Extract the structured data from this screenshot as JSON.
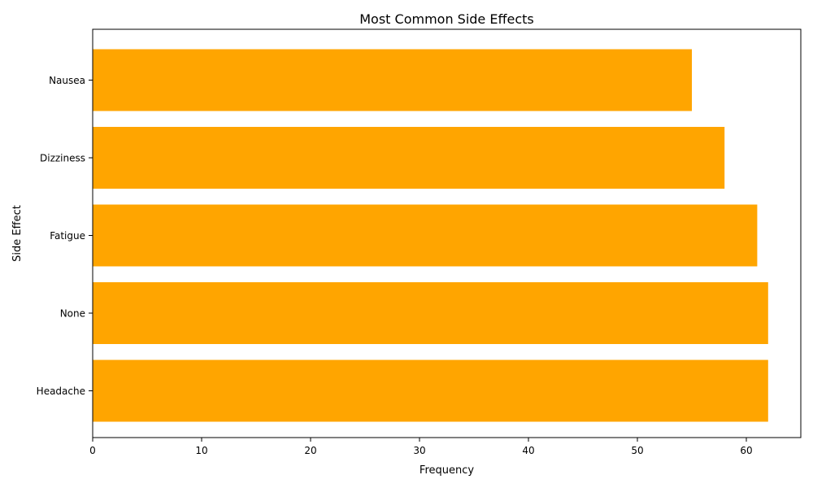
{
  "chart_data": {
    "type": "bar",
    "orientation": "horizontal",
    "title": "Most Common Side Effects",
    "xlabel": "Frequency",
    "ylabel": "Side Effect",
    "categories": [
      "Headache",
      "None",
      "Fatigue",
      "Dizziness",
      "Nausea"
    ],
    "values": [
      62,
      62,
      61,
      58,
      55
    ],
    "xlim": [
      0,
      65
    ],
    "xticks": [
      0,
      10,
      20,
      30,
      40,
      50,
      60
    ],
    "bar_color": "#FFA500",
    "grid": false,
    "legend": "none"
  }
}
